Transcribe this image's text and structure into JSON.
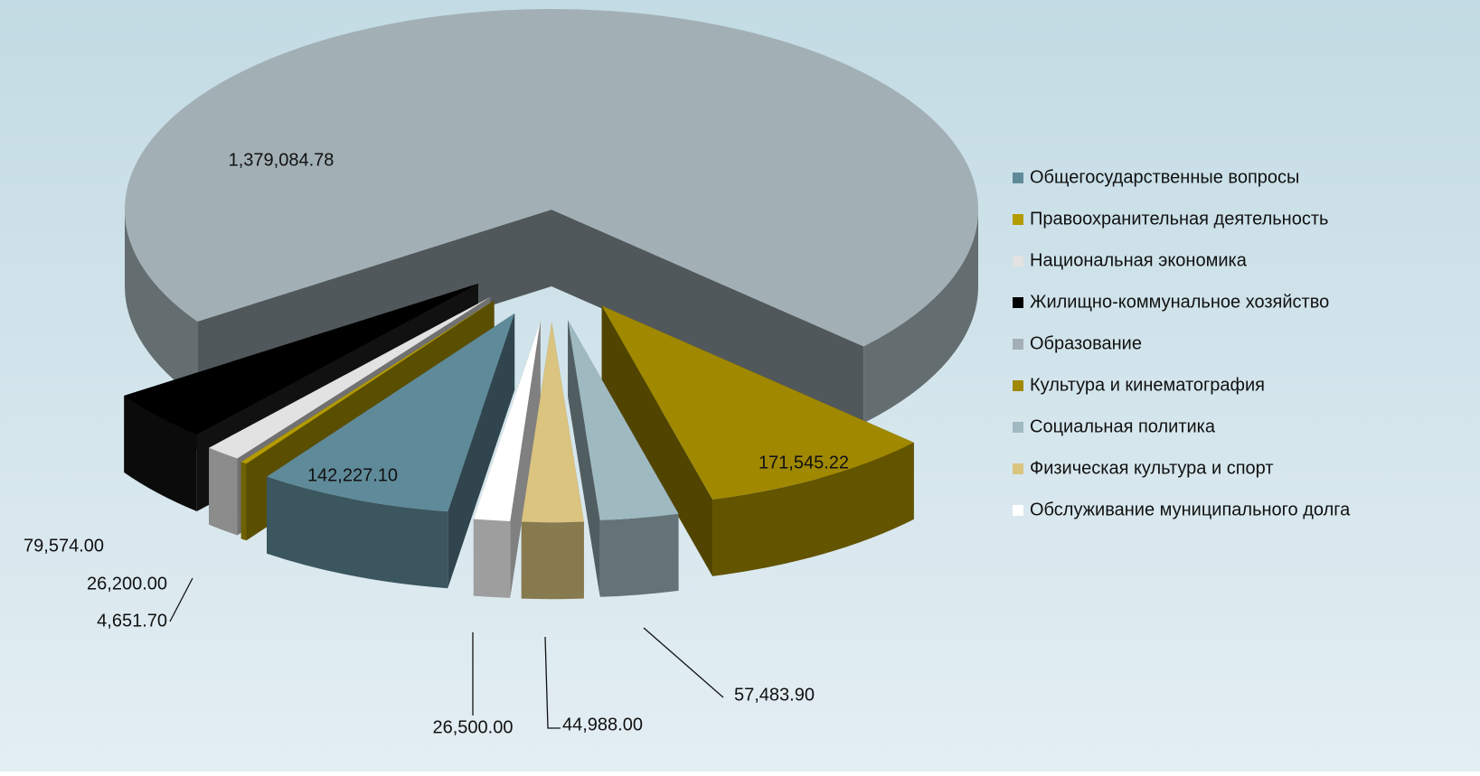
{
  "chart_data": {
    "type": "pie",
    "categories": [
      "Общегосударственные вопросы",
      "Правоохранительная деятельность",
      "Национальная экономика",
      "Жилищно-коммунальное хозяйство",
      "Образование",
      "Культура и кинематография",
      "Социальная политика",
      "Физическая культура и спорт",
      "Обслуживание муниципального долга"
    ],
    "values": [
      142227.1,
      4651.7,
      26200.0,
      79574.0,
      1379084.78,
      171545.22,
      57483.9,
      44988.0,
      26500.0
    ],
    "value_labels": [
      "142,227.10",
      "4,651.70",
      "26,200.00",
      "79,574.00",
      "1,379,084.78",
      "171,545.22",
      "57,483.90",
      "44,988.00",
      "26,500.00"
    ],
    "colors": [
      "#5f8a99",
      "#b39b00",
      "#e2e2e2",
      "#000000",
      "#a2b0b5",
      "#a08800",
      "#9fb9c1",
      "#dac480",
      "#ffffff"
    ],
    "exploded": [
      true,
      true,
      true,
      true,
      false,
      true,
      true,
      true,
      true
    ],
    "legend": "right"
  }
}
